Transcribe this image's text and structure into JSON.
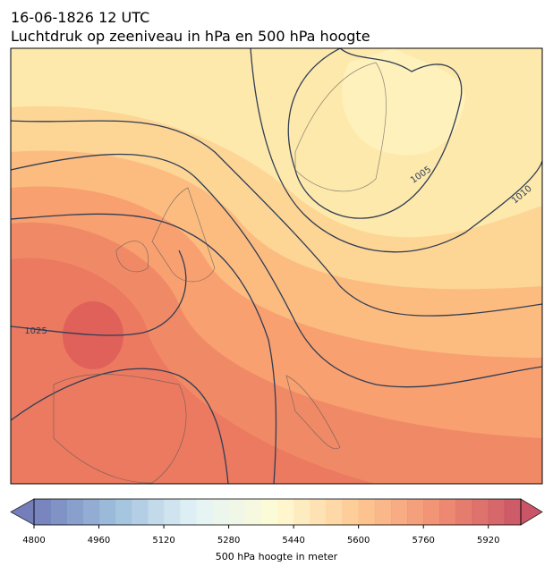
{
  "header": {
    "title": "16-06-1826 12 UTC",
    "subtitle": "Luchtdruk op zeeniveau in hPa en 500 hPa hoogte"
  },
  "isobar_labels": [
    "1005",
    "1010",
    "1025"
  ],
  "colorbar": {
    "lim": [
      4800,
      6000
    ],
    "step": 40,
    "ticks": [
      4800,
      4960,
      5120,
      5280,
      5440,
      5600,
      5760,
      5920
    ],
    "stops": [
      "#5b68b0",
      "#8fb5d6",
      "#dff1f6",
      "#fffbcd",
      "#fdbf80",
      "#ef7a5a",
      "#c1384d"
    ],
    "label": "500 hPa hoogte in meter"
  }
}
